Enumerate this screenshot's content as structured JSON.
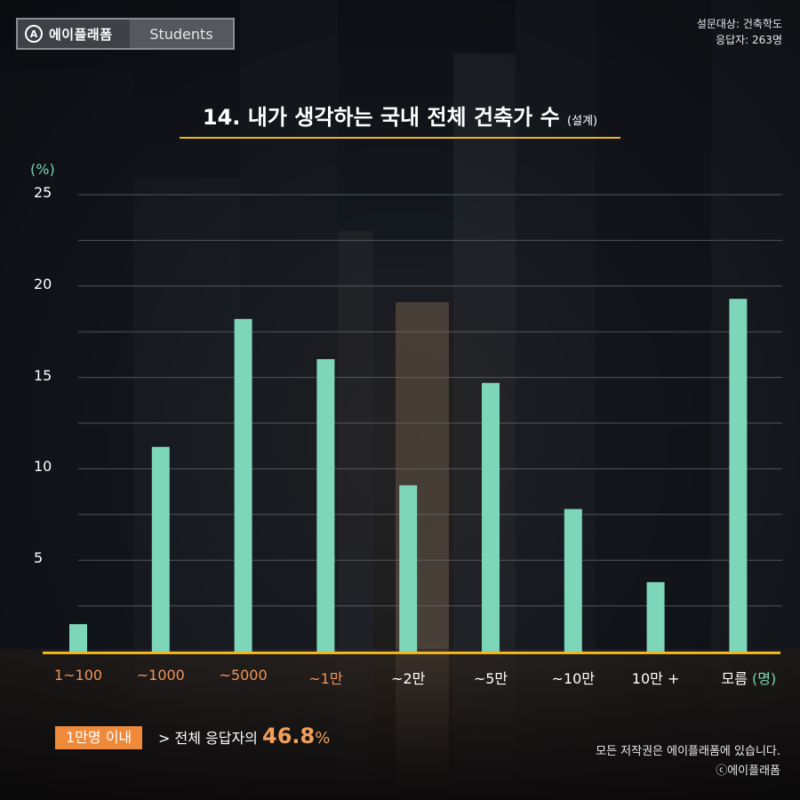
{
  "header": {
    "brand": "에이플래폼",
    "brand_mark": "A",
    "section": "Students",
    "survey_target": "설문대상: 건축학도",
    "respondents": "응답자: 263명"
  },
  "title": {
    "main": "14. 내가 생각하는 국내 전체 건축가 수",
    "sub": "(설계)"
  },
  "chart_data": {
    "type": "bar",
    "ylabel": "(%)",
    "xunit": "(명)",
    "ylim": [
      0,
      25
    ],
    "yticks": [
      5,
      10,
      15,
      20,
      25
    ],
    "grid": true,
    "categories": [
      "1~100",
      "~1000",
      "~5000",
      "~1만",
      "~2만",
      "~5만",
      "~10만",
      "10만 +",
      "모름"
    ],
    "values": [
      1.5,
      11.2,
      18.2,
      16.0,
      9.1,
      14.7,
      7.8,
      3.8,
      19.3
    ],
    "colors": {
      "bar": "#7ed6b8",
      "axis": "#f2b418",
      "label_highlight": "#f0955a",
      "label_normal": "#ffffff",
      "gridline": "#6c6f73"
    }
  },
  "callout": {
    "badge": "1만명 이내",
    "prefix": "> 전체 응답자의",
    "value": "46.8",
    "unit": "%"
  },
  "footer": {
    "rights": "모든 저작권은 에이플래폼에 있습니다.",
    "copyright": "ⓒ에이플래폼"
  }
}
